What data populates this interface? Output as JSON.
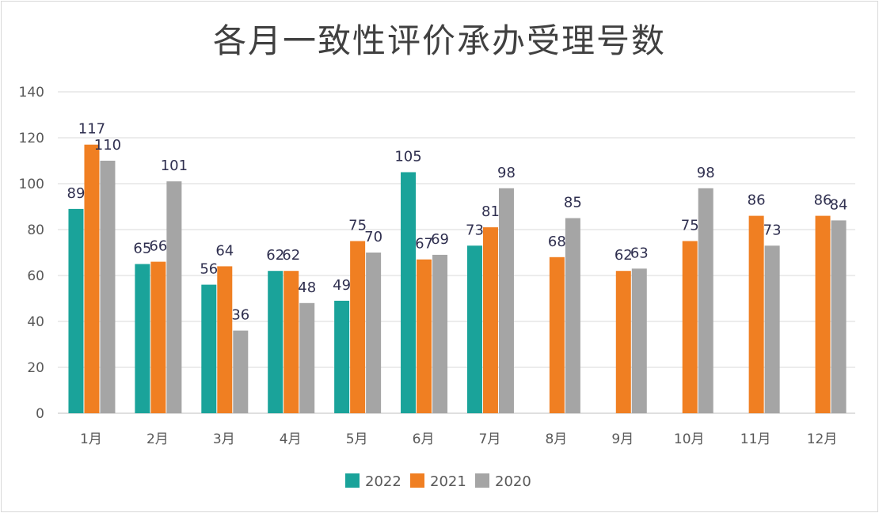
{
  "chart_data": {
    "type": "bar",
    "title": "各月一致性评价承办受理号数",
    "categories": [
      "1月",
      "2月",
      "3月",
      "4月",
      "5月",
      "6月",
      "7月",
      "8月",
      "9月",
      "10月",
      "11月",
      "12月"
    ],
    "series": [
      {
        "name": "2022",
        "color": "#1aa39a",
        "values": [
          89,
          65,
          56,
          62,
          49,
          105,
          73,
          null,
          null,
          null,
          null,
          null
        ]
      },
      {
        "name": "2021",
        "color": "#f07f22",
        "values": [
          117,
          66,
          64,
          62,
          75,
          67,
          81,
          68,
          62,
          75,
          86,
          86
        ]
      },
      {
        "name": "2020",
        "color": "#a5a5a5",
        "values": [
          110,
          101,
          36,
          48,
          70,
          69,
          98,
          85,
          63,
          98,
          73,
          84
        ]
      }
    ],
    "ylim": [
      0,
      140
    ],
    "yticks": [
      0,
      20,
      40,
      60,
      80,
      100,
      120,
      140
    ],
    "grid": true,
    "legend": "bottom",
    "data_labels": true
  }
}
